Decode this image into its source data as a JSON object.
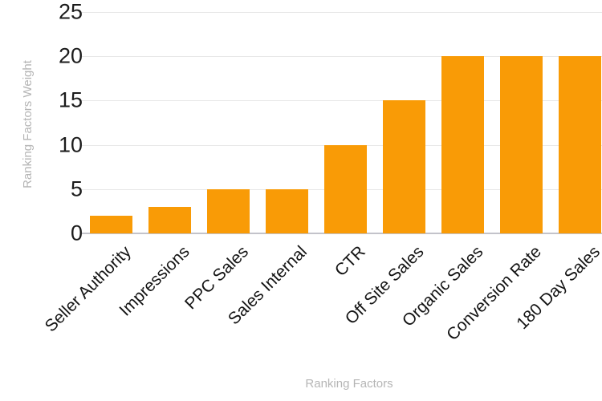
{
  "chart_data": {
    "type": "bar",
    "categories": [
      "Seller Authority",
      "Impressions",
      "PPC Sales",
      "Sales Internal",
      "CTR",
      "Off Site Sales",
      "Organic Sales",
      "Conversion Rate",
      "180 Day Sales"
    ],
    "values": [
      2,
      3,
      5,
      5,
      10,
      15,
      20,
      20,
      20
    ],
    "title": "",
    "xlabel": "Ranking Factors",
    "ylabel": "Ranking Factors Weight",
    "ylim": [
      0,
      25
    ],
    "yticks": [
      0,
      5,
      10,
      15,
      20,
      25
    ],
    "grid": true,
    "legend": false,
    "bar_color": "#F99B06",
    "gridline_color": "#e7e7e7",
    "axis_line_color": "#c3c3ca",
    "tick_label_color": "#1b1b1b",
    "axis_title_color": "#b5b5b5",
    "background_color": "#ffffff"
  }
}
